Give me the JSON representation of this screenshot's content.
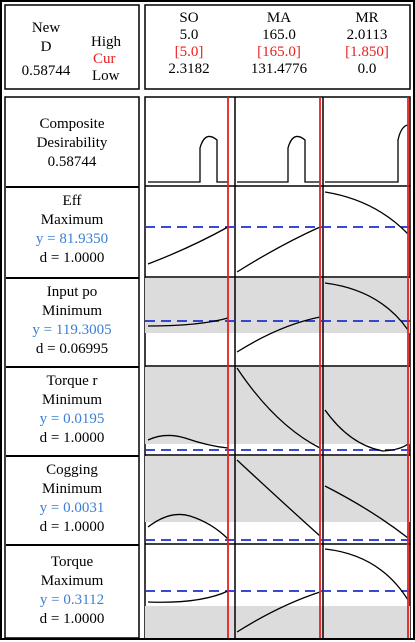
{
  "header": {
    "new_label": "New",
    "d_label": "D",
    "d_value": "0.58744",
    "high_label": "High",
    "cur_label": "Cur",
    "low_label": "Low"
  },
  "factors": [
    {
      "name": "SO",
      "high": "5.0",
      "cur": "[5.0]",
      "low": "2.3182"
    },
    {
      "name": "MA",
      "high": "165.0",
      "cur": "[165.0]",
      "low": "131.4776"
    },
    {
      "name": "MR",
      "high": "2.0113",
      "cur": "[1.850]",
      "low": "0.0"
    }
  ],
  "rows": [
    {
      "line1": "Composite",
      "line2": "Desirability",
      "line3": "0.58744",
      "line4": ""
    },
    {
      "line1": "Eff",
      "line2": "Maximum",
      "line3": "y = 81.9350",
      "line4": "d = 1.0000"
    },
    {
      "line1": "Input po",
      "line2": "Minimum",
      "line3": "y = 119.3005",
      "line4": "d = 0.06995"
    },
    {
      "line1": "Torque r",
      "line2": "Minimum",
      "line3": "y = 0.0195",
      "line4": "d = 1.0000"
    },
    {
      "line1": "Cogging",
      "line2": "Minimum",
      "line3": "y = 0.0031",
      "line4": "d = 1.0000"
    },
    {
      "line1": "Torque",
      "line2": "Maximum",
      "line3": "y = 0.3112",
      "line4": "d = 1.0000"
    }
  ],
  "colors": {
    "cur_marker": "#e82020",
    "y_value": "#3a7fd5",
    "dashed_line": "#1f2fd0",
    "shade": "#dcdcdc"
  }
}
